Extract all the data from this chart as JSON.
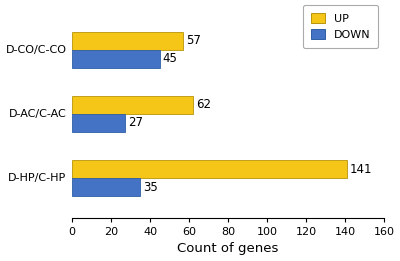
{
  "groups": [
    "D-CO/C-CO",
    "D-AC/C-AC",
    "D-HP/C-HP"
  ],
  "up_values": [
    57,
    62,
    141
  ],
  "down_values": [
    45,
    27,
    35
  ],
  "up_color": "#F5C518",
  "down_color": "#4472C4",
  "bar_edge_color": "#B8940A",
  "down_edge_color": "#2E5FA3",
  "xlabel": "Count of genes",
  "xlim": [
    0,
    160
  ],
  "xticks": [
    0,
    20,
    40,
    60,
    80,
    100,
    120,
    140,
    160
  ],
  "label_fontsize": 8.5,
  "tick_fontsize": 8,
  "xlabel_fontsize": 9.5,
  "ytick_fontsize": 8,
  "bar_height": 0.28
}
